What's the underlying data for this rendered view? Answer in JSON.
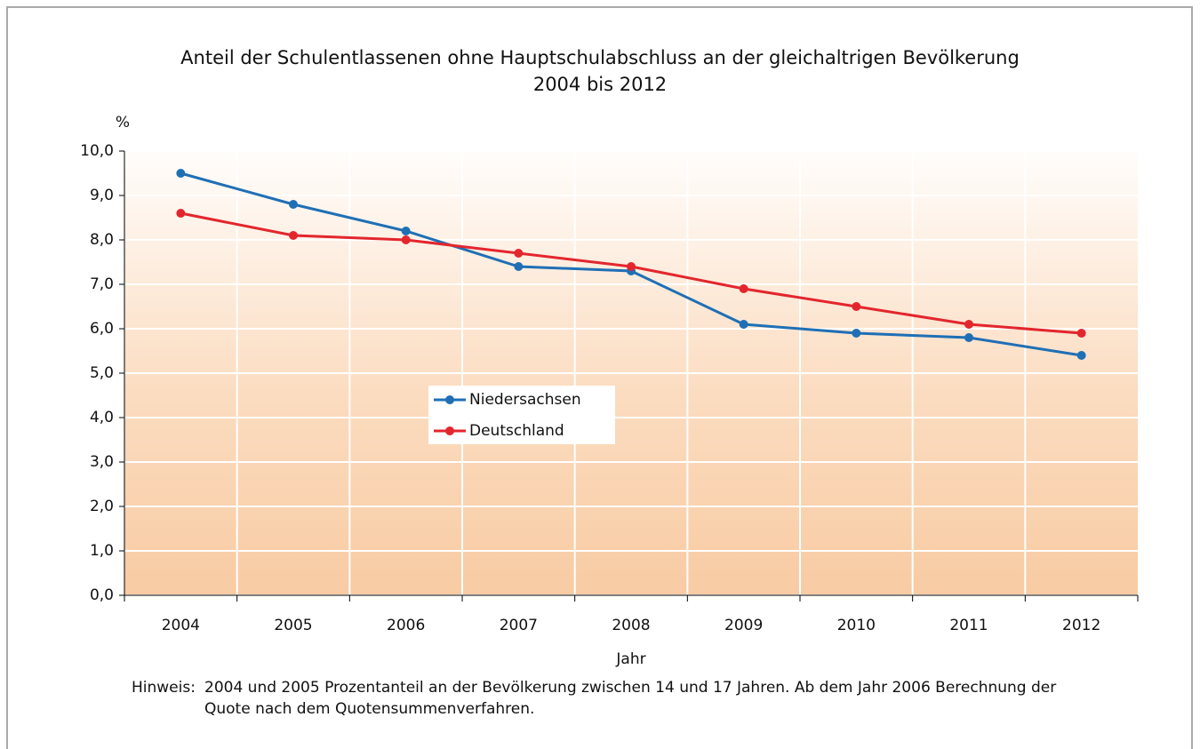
{
  "chart_data": {
    "type": "line",
    "title": "Anteil der Schulentlassenen ohne Hauptschulabschluss an der gleichaltrigen Bevölkerung",
    "subtitle": "2004 bis 2012",
    "y_axis_label": "%",
    "x_axis_label": "Jahr",
    "categories": [
      "2004",
      "2005",
      "2006",
      "2007",
      "2008",
      "2009",
      "2010",
      "2011",
      "2012"
    ],
    "series": [
      {
        "name": "Niedersachsen",
        "color": "#1f6fb5",
        "values": [
          9.5,
          8.8,
          8.2,
          7.4,
          7.3,
          6.1,
          5.9,
          5.8,
          5.4
        ]
      },
      {
        "name": "Deutschland",
        "color": "#e3262d",
        "values": [
          8.6,
          8.1,
          8.0,
          7.7,
          7.4,
          6.9,
          6.5,
          6.1,
          5.9
        ]
      }
    ],
    "ylim": [
      0,
      10
    ],
    "yticks": [
      {
        "value": 0,
        "label": "0,0"
      },
      {
        "value": 1,
        "label": "1,0"
      },
      {
        "value": 2,
        "label": "2,0"
      },
      {
        "value": 3,
        "label": "3,0"
      },
      {
        "value": 4,
        "label": "4,0"
      },
      {
        "value": 5,
        "label": "5,0"
      },
      {
        "value": 6,
        "label": "6,0"
      },
      {
        "value": 7,
        "label": "7,0"
      },
      {
        "value": 8,
        "label": "8,0"
      },
      {
        "value": 9,
        "label": "9,0"
      },
      {
        "value": 10,
        "label": "10,0"
      }
    ],
    "grid": true,
    "legend": "center",
    "note_label": "Hinweis:",
    "note": [
      "2004 und 2005 Prozentanteil an der Bevölkerung zwischen 14 und 17 Jahren. Ab dem Jahr 2006 Berechnung der",
      "Quote nach dem Quotensummenverfahren."
    ]
  }
}
